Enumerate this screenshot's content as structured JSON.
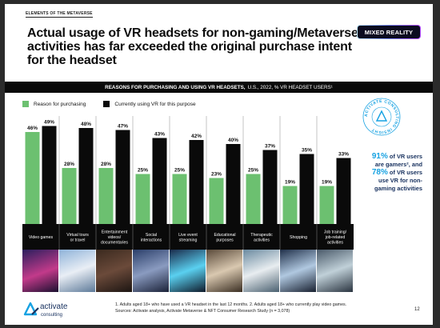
{
  "section_label": "ELEMENTS OF THE METAVERSE",
  "headline": "Actual usage of VR headsets for non-gaming/Metaverse activities has far exceeded the original purchase intent for the headset",
  "badge": "MIXED REALITY",
  "subheader": {
    "bold": "REASONS FOR PURCHASING AND USING VR HEADSETS,",
    "rest": "U.S., 2022, % VR HEADSET USERS¹"
  },
  "colors": {
    "purchase": "#6cc070",
    "using": "#0a0a0a",
    "accent": "#17a2e2",
    "callout_text": "#1a3360"
  },
  "chart_data": {
    "type": "bar",
    "categories": [
      "Video games",
      "Virtual tours or travel",
      "Entertainment videos/ documentaries",
      "Social interactions",
      "Live event streaming",
      "Educational purposes",
      "Therapeutic activities",
      "Shopping",
      "Job training/ job-related activities"
    ],
    "series": [
      {
        "name": "Reason for purchasing",
        "values": [
          46,
          28,
          28,
          25,
          25,
          23,
          25,
          19,
          19
        ],
        "labels": [
          "46%",
          "28%",
          "28%",
          "25%",
          "25%",
          "23%",
          "25%",
          "19%",
          "19%"
        ]
      },
      {
        "name": "Currently using VR for this purpose",
        "values": [
          49,
          48,
          47,
          43,
          42,
          40,
          37,
          35,
          33
        ],
        "labels": [
          "49%",
          "48%",
          "47%",
          "43%",
          "42%",
          "40%",
          "37%",
          "35%",
          "33%"
        ]
      }
    ],
    "ylim": [
      0,
      50
    ],
    "legend_position": "top-left"
  },
  "callout": {
    "pct1": "91%",
    "text1": " of VR users are gamers², and ",
    "pct2": "78%",
    "text2": " of VR users use VR for non-gaming activities"
  },
  "stamp_text": "ACTIVATE CONSULTING INSIGHT",
  "logo": {
    "name": "activate",
    "tagline": "consulting"
  },
  "footnotes": {
    "line1": "1. Adults aged 18+ who have used a VR headset in the last 12 months.   2. Adults aged 18+ who currently play video games.",
    "line2": "Sources: Activate analysis, Activate Metaverse & NFT Consumer Research Study (n = 3,078)"
  },
  "page_number": "12"
}
